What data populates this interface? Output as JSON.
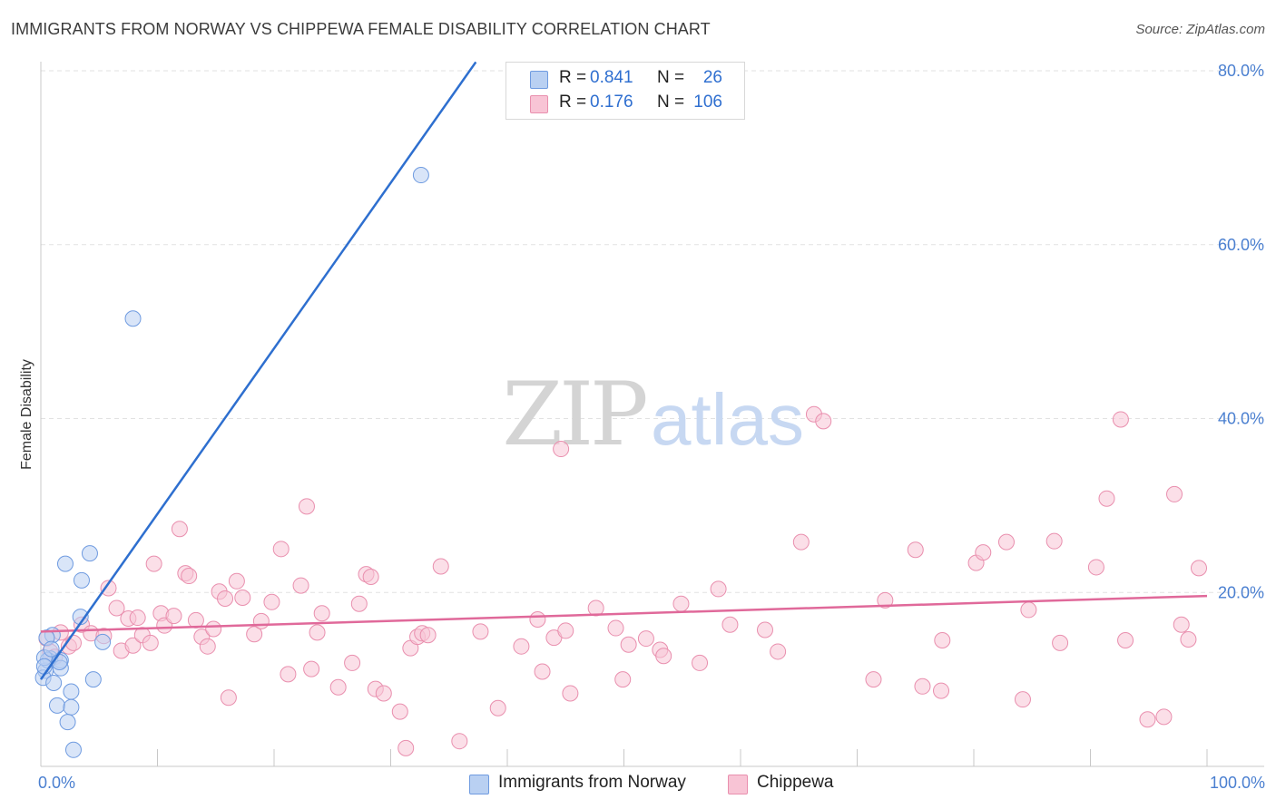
{
  "title": "IMMIGRANTS FROM NORWAY VS CHIPPEWA FEMALE DISABILITY CORRELATION CHART",
  "source": "Source: ZipAtlas.com",
  "watermark": {
    "zip": "ZIP",
    "atlas": "atlas"
  },
  "legend": {
    "rows": [
      {
        "r_label": "R =",
        "r_value": "0.841",
        "n_label": "N =",
        "n_value": "26"
      },
      {
        "r_label": "R =",
        "r_value": "0.176",
        "n_label": "N =",
        "n_value": "106"
      }
    ]
  },
  "colors": {
    "norway_fill": "#b9d0f2",
    "norway_stroke": "#6f9be0",
    "norway_line": "#2e6fcf",
    "chippewa_fill": "#f8c4d5",
    "chippewa_stroke": "#e98fae",
    "chippewa_line": "#e0699a",
    "tick_label": "#4a7fd0",
    "grid": "#e2e2e2"
  },
  "chart_data": {
    "type": "scatter",
    "title": "IMMIGRANTS FROM NORWAY VS CHIPPEWA FEMALE DISABILITY CORRELATION CHART",
    "xlabel": "",
    "ylabel": "Female Disability",
    "xlim": [
      0,
      100
    ],
    "ylim": [
      0,
      80
    ],
    "x_tick_labels": [
      "0.0%",
      "100.0%"
    ],
    "y_ticks": [
      {
        "value": 20,
        "label": "20.0%"
      },
      {
        "value": 40,
        "label": "40.0%"
      },
      {
        "value": 60,
        "label": "60.0%"
      },
      {
        "value": 80,
        "label": "80.0%"
      }
    ],
    "grid": true,
    "legend_position": "top-center",
    "series": [
      {
        "name": "Immigrants from Norway",
        "r": 0.841,
        "n": 26,
        "trend": [
          [
            0,
            10.0
          ],
          [
            37.3,
            81.0
          ]
        ],
        "points": [
          [
            7.9,
            51.5
          ],
          [
            32.6,
            68.0
          ],
          [
            2.1,
            23.3
          ],
          [
            4.2,
            24.5
          ],
          [
            3.5,
            21.4
          ],
          [
            3.4,
            17.2
          ],
          [
            1.0,
            15.1
          ],
          [
            0.5,
            14.8
          ],
          [
            0.8,
            12.4
          ],
          [
            1.7,
            12.2
          ],
          [
            1.7,
            11.3
          ],
          [
            0.4,
            11.0
          ],
          [
            0.2,
            10.2
          ],
          [
            1.1,
            9.6
          ],
          [
            4.5,
            10.0
          ],
          [
            2.6,
            8.6
          ],
          [
            1.4,
            7.0
          ],
          [
            2.6,
            6.8
          ],
          [
            2.3,
            5.1
          ],
          [
            2.8,
            1.9
          ],
          [
            5.3,
            14.3
          ],
          [
            0.6,
            12.2
          ],
          [
            0.3,
            12.5
          ],
          [
            1.6,
            12.0
          ],
          [
            0.3,
            11.5
          ],
          [
            0.9,
            13.5
          ]
        ]
      },
      {
        "name": "Chippewa",
        "r": 0.176,
        "n": 106,
        "trend": [
          [
            0,
            15.5
          ],
          [
            100,
            19.6
          ]
        ],
        "points": [
          [
            0.5,
            14.7
          ],
          [
            0.8,
            13.2
          ],
          [
            1.2,
            12.6
          ],
          [
            1.7,
            15.4
          ],
          [
            2.4,
            13.8
          ],
          [
            2.8,
            14.2
          ],
          [
            3.5,
            16.3
          ],
          [
            4.3,
            15.3
          ],
          [
            5.4,
            15.0
          ],
          [
            5.8,
            20.5
          ],
          [
            6.5,
            18.2
          ],
          [
            6.9,
            13.3
          ],
          [
            7.5,
            17.0
          ],
          [
            7.9,
            13.9
          ],
          [
            8.3,
            17.1
          ],
          [
            8.7,
            15.1
          ],
          [
            9.4,
            14.2
          ],
          [
            9.7,
            23.3
          ],
          [
            10.3,
            17.6
          ],
          [
            10.6,
            16.2
          ],
          [
            11.4,
            17.3
          ],
          [
            11.9,
            27.3
          ],
          [
            12.4,
            22.2
          ],
          [
            12.7,
            21.9
          ],
          [
            13.3,
            16.8
          ],
          [
            13.8,
            14.9
          ],
          [
            14.3,
            13.8
          ],
          [
            14.8,
            15.8
          ],
          [
            15.3,
            20.1
          ],
          [
            15.8,
            19.3
          ],
          [
            16.1,
            7.9
          ],
          [
            16.8,
            21.3
          ],
          [
            17.3,
            19.4
          ],
          [
            18.3,
            15.2
          ],
          [
            18.9,
            16.7
          ],
          [
            19.8,
            18.9
          ],
          [
            20.6,
            25.0
          ],
          [
            21.2,
            10.6
          ],
          [
            22.3,
            20.8
          ],
          [
            22.8,
            29.9
          ],
          [
            23.2,
            11.2
          ],
          [
            23.7,
            15.4
          ],
          [
            24.1,
            17.6
          ],
          [
            25.5,
            9.1
          ],
          [
            26.7,
            11.9
          ],
          [
            27.3,
            18.7
          ],
          [
            27.9,
            22.1
          ],
          [
            28.3,
            21.8
          ],
          [
            28.7,
            8.9
          ],
          [
            29.4,
            8.4
          ],
          [
            30.8,
            6.3
          ],
          [
            31.3,
            2.1
          ],
          [
            31.7,
            13.6
          ],
          [
            32.3,
            14.9
          ],
          [
            32.7,
            15.3
          ],
          [
            33.2,
            15.1
          ],
          [
            34.3,
            23.0
          ],
          [
            35.9,
            2.9
          ],
          [
            37.7,
            15.5
          ],
          [
            39.2,
            6.7
          ],
          [
            41.2,
            13.8
          ],
          [
            42.6,
            16.9
          ],
          [
            43.0,
            10.9
          ],
          [
            44.0,
            14.8
          ],
          [
            44.6,
            36.5
          ],
          [
            45.0,
            15.6
          ],
          [
            45.4,
            8.4
          ],
          [
            47.6,
            18.2
          ],
          [
            49.3,
            15.9
          ],
          [
            49.9,
            10.0
          ],
          [
            50.4,
            14.0
          ],
          [
            51.9,
            14.7
          ],
          [
            53.1,
            13.4
          ],
          [
            53.4,
            12.7
          ],
          [
            54.9,
            18.7
          ],
          [
            56.5,
            11.9
          ],
          [
            58.1,
            20.4
          ],
          [
            59.1,
            16.3
          ],
          [
            62.1,
            15.7
          ],
          [
            63.2,
            13.2
          ],
          [
            65.2,
            25.8
          ],
          [
            66.3,
            40.5
          ],
          [
            67.1,
            39.7
          ],
          [
            71.4,
            10.0
          ],
          [
            72.4,
            19.1
          ],
          [
            75.0,
            24.9
          ],
          [
            75.6,
            9.2
          ],
          [
            77.2,
            8.7
          ],
          [
            77.3,
            14.5
          ],
          [
            80.2,
            23.4
          ],
          [
            80.8,
            24.6
          ],
          [
            82.8,
            25.8
          ],
          [
            84.2,
            7.7
          ],
          [
            84.7,
            18.0
          ],
          [
            86.9,
            25.9
          ],
          [
            87.4,
            14.2
          ],
          [
            90.5,
            22.9
          ],
          [
            91.4,
            30.8
          ],
          [
            92.6,
            39.9
          ],
          [
            93.0,
            14.5
          ],
          [
            94.9,
            5.4
          ],
          [
            96.3,
            5.7
          ],
          [
            97.2,
            31.3
          ],
          [
            97.8,
            16.3
          ],
          [
            98.4,
            14.6
          ],
          [
            99.3,
            22.8
          ]
        ]
      }
    ]
  }
}
